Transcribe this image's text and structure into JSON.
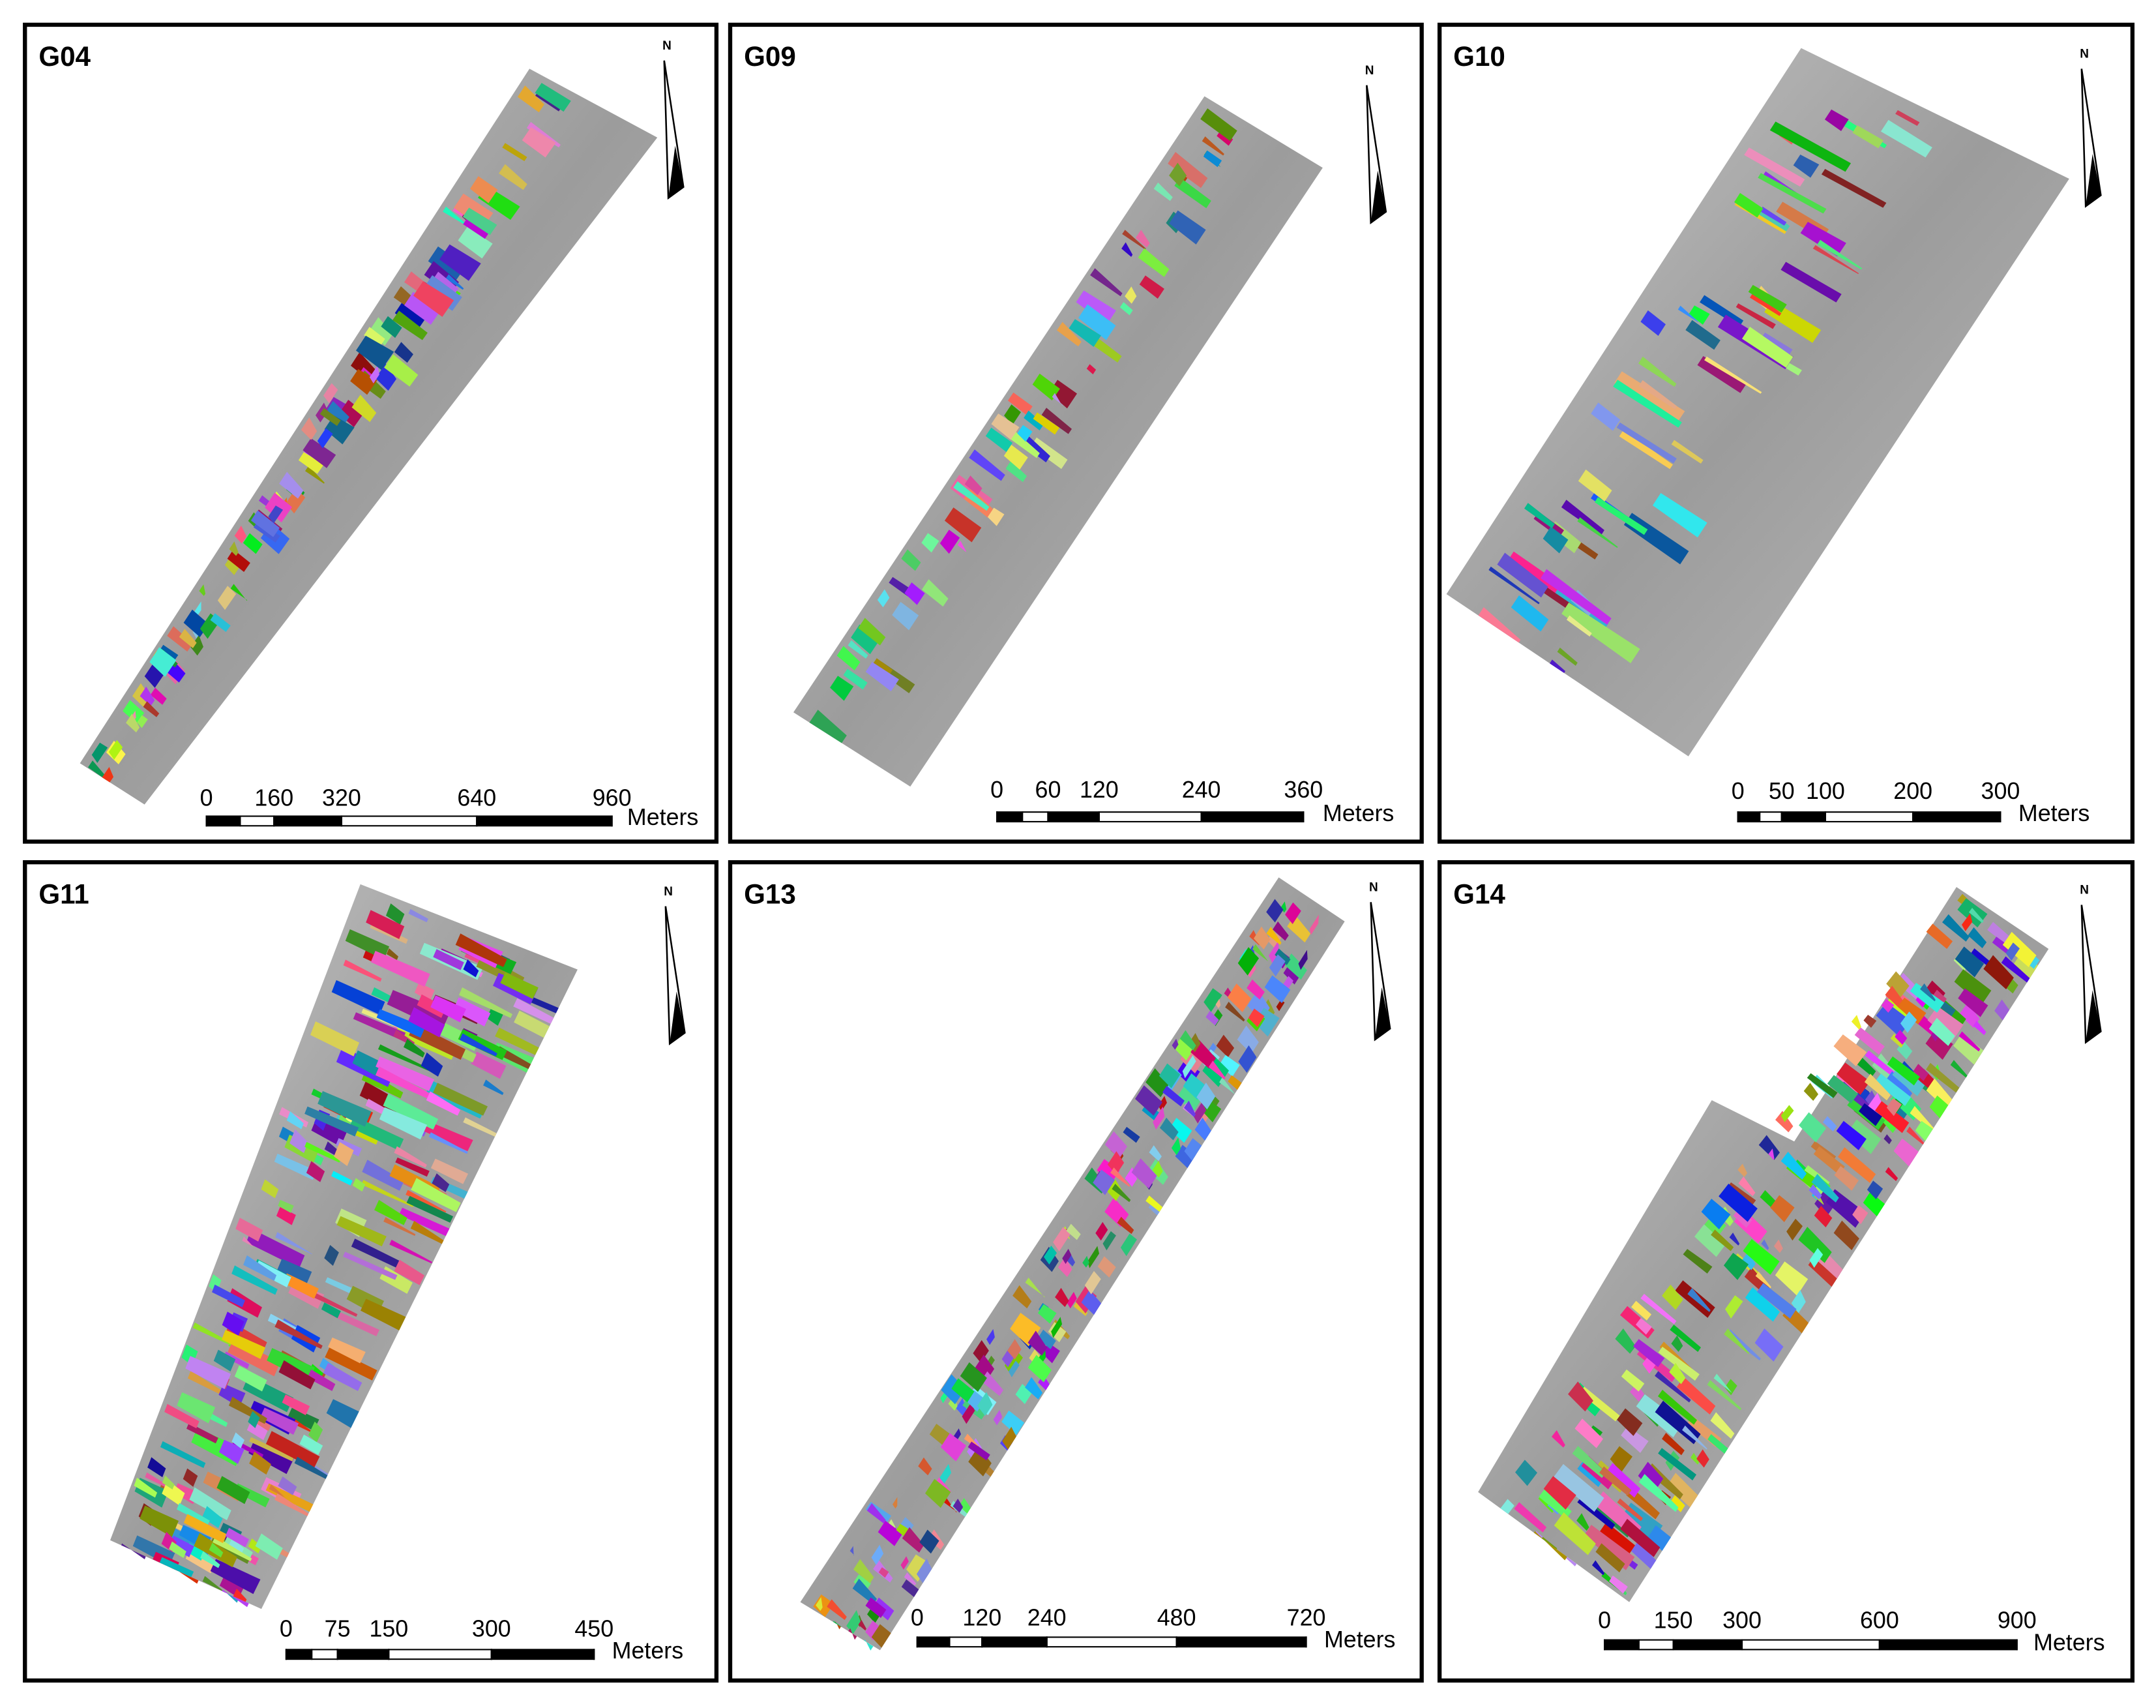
{
  "panels": [
    {
      "title": "G04",
      "scale_ticks": [
        0,
        160,
        320,
        640,
        960
      ],
      "scale_unit": "Meters",
      "north": "N"
    },
    {
      "title": "G09",
      "scale_ticks": [
        0,
        60,
        120,
        240,
        360
      ],
      "scale_unit": "Meters",
      "north": "N"
    },
    {
      "title": "G10",
      "scale_ticks": [
        0,
        50,
        100,
        200,
        300
      ],
      "scale_unit": "Meters",
      "north": "N"
    },
    {
      "title": "G11",
      "scale_ticks": [
        0,
        75,
        150,
        300,
        450
      ],
      "scale_unit": "Meters",
      "north": "N"
    },
    {
      "title": "G13",
      "scale_ticks": [
        0,
        120,
        240,
        480,
        720
      ],
      "scale_unit": "Meters",
      "north": "N"
    },
    {
      "title": "G14",
      "scale_ticks": [
        0,
        150,
        300,
        600,
        900
      ],
      "scale_unit": "Meters",
      "north": "N"
    }
  ]
}
